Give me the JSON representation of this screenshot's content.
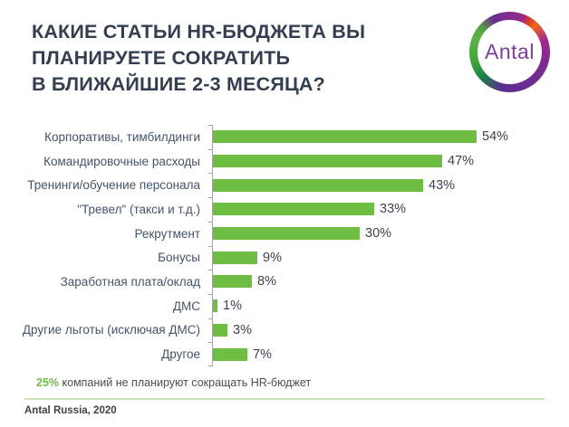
{
  "title": {
    "text": "КАКИЕ СТАТЬИ HR-БЮДЖЕТА ВЫ\nПЛАНИРУЕТЕ СОКРАТИТЬ\nВ БЛИЖАЙШИЕ 2-3 МЕСЯЦА?"
  },
  "logo": {
    "label": "Antal"
  },
  "chart_data": {
    "type": "bar",
    "orientation": "horizontal",
    "categories": [
      "Корпоративы, тимбилдинги",
      "Командировочные расходы",
      "Тренинги/обучение персонала",
      "\"Тревел\" (такси и т.д.)",
      "Рекрутмент",
      "Бонусы",
      "Заработная плата/оклад",
      "ДМС",
      "Другие льготы (исключая ДМС)",
      "Другое"
    ],
    "values": [
      54,
      47,
      43,
      33,
      30,
      9,
      8,
      1,
      3,
      7
    ],
    "value_labels": [
      "54%",
      "47%",
      "43%",
      "33%",
      "30%",
      "9%",
      "8%",
      "1%",
      "3%",
      "7%"
    ],
    "value_suffix": "%",
    "xlim": [
      0,
      60
    ],
    "grid": false,
    "legend": false,
    "bar_color": "#6FBE44",
    "axis_color": "#A6A6A6"
  },
  "footnote": {
    "highlight": "25%",
    "rest": " компаний не планируют сокращать HR-бюджет"
  },
  "source": {
    "text": "Antal Russia, 2020"
  },
  "colors": {
    "title": "#333F50",
    "category_label": "#44546A",
    "value_label": "#3A4350",
    "footnote": "#4D4D4D",
    "source": "#3F3F3F",
    "divider": "#C9E3B6",
    "logo_text": "#7D3F98"
  }
}
